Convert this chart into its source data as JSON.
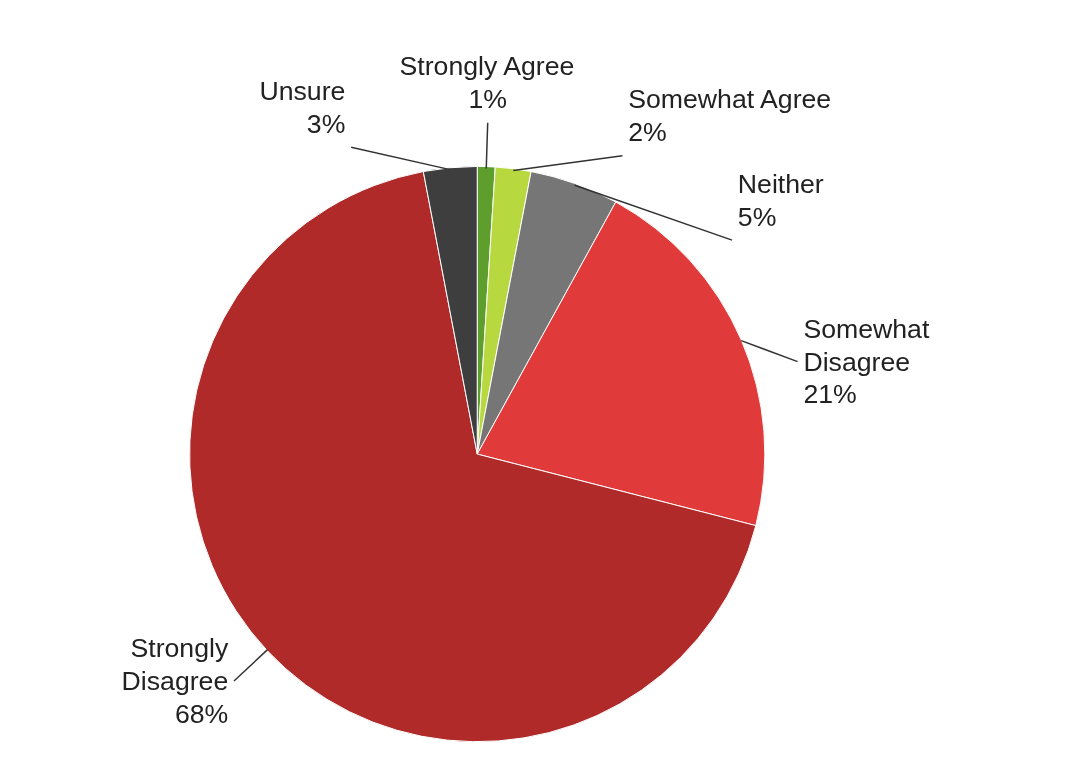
{
  "chart_data": {
    "type": "pie",
    "categories": [
      "Strongly Agree",
      "Somewhat Agree",
      "Neither",
      "Somewhat Disagree",
      "Strongly Disagree",
      "Unsure"
    ],
    "values": [
      1,
      2,
      5,
      21,
      68,
      3
    ],
    "value_labels": [
      "1%",
      "2%",
      "5%",
      "21%",
      "68%",
      "3%"
    ],
    "colors": [
      "#5e9e2c",
      "#b8d840",
      "#767676",
      "#e03a3a",
      "#b02a2a",
      "#3e3e3e"
    ]
  }
}
